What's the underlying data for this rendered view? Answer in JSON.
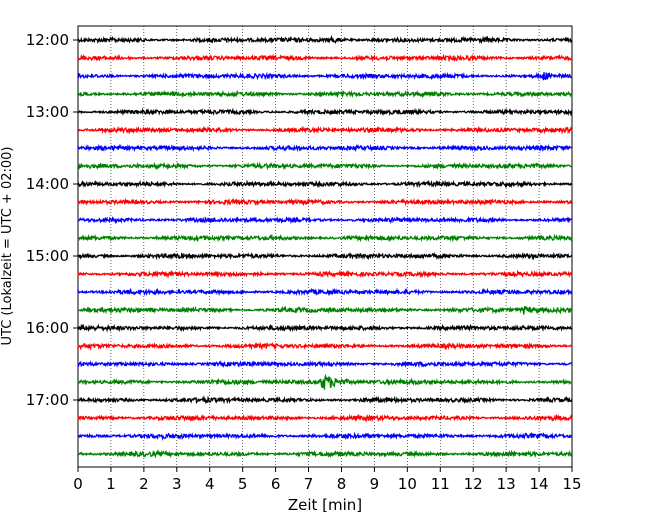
{
  "chart_data": {
    "type": "line",
    "title": "",
    "xlabel": "Zeit  [min]",
    "ylabel": "UTC (Lokalzeit = UTC + 02:00)",
    "xlim": [
      0,
      15
    ],
    "x_ticks": [
      0,
      1,
      2,
      3,
      4,
      5,
      6,
      7,
      8,
      9,
      10,
      11,
      12,
      13,
      14,
      15
    ],
    "y_start_minutes": 720,
    "trace_interval_minutes": 15,
    "trace_count": 24,
    "y_tick_labels": [
      "12:00",
      "13:00",
      "14:00",
      "15:00",
      "16:00",
      "17:00"
    ],
    "y_tick_positions_minutes": [
      720,
      780,
      840,
      900,
      960,
      1020
    ],
    "series_colors": [
      "#000000",
      "#ff0000",
      "#0000ff",
      "#008000"
    ],
    "vertical_grid": "dotted",
    "legend": "none",
    "notable_events": [
      {
        "trace_time": "16:45",
        "x_min": 7.4,
        "note": "largest burst"
      },
      {
        "trace_time": "12:00",
        "x_min": 7.7
      },
      {
        "trace_time": "12:30",
        "x_min": 14.1
      },
      {
        "trace_time": "15:45",
        "x_min": 13.5
      }
    ]
  }
}
